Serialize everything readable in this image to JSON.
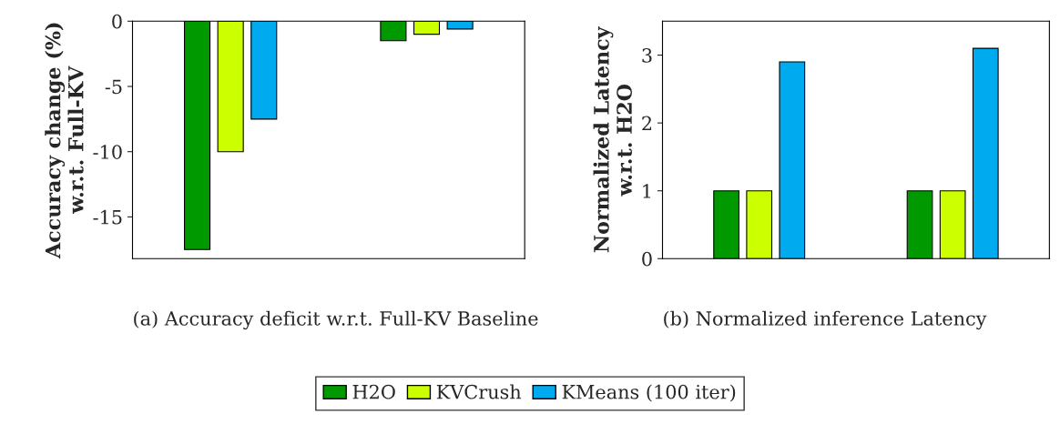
{
  "chart_data": [
    {
      "type": "bar",
      "ylabel": "Accuracy change (%)\nw.r.t. Full-KV",
      "categories": [
        null,
        null
      ],
      "series": [
        {
          "name": "H2O",
          "color": "#009900",
          "values": [
            -17.5,
            -1.5
          ]
        },
        {
          "name": "KVCrush",
          "color": "#ccff00",
          "values": [
            -10,
            -1
          ]
        },
        {
          "name": "KMeans (100 iter)",
          "color": "#00aaee",
          "values": [
            -7.5,
            -0.6
          ]
        }
      ],
      "tick_labels": "y",
      "ylim": [
        -18.2,
        0
      ],
      "yticks": [
        -15,
        -10,
        -5,
        0
      ],
      "legend": "bottom",
      "annotations": [
        "(a) Accuracy deficit w.r.t. Full-KV Baseline"
      ]
    },
    {
      "type": "bar",
      "ylabel": "Normalized Latency\nw.r.t. H2O",
      "categories": [
        null,
        null
      ],
      "series": [
        {
          "name": "H2O",
          "color": "#009900",
          "values": [
            1,
            1
          ]
        },
        {
          "name": "KVCrush",
          "color": "#ccff00",
          "values": [
            1,
            1
          ]
        },
        {
          "name": "KMeans (100 iter)",
          "color": "#00aaee",
          "values": [
            2.9,
            3.1
          ]
        }
      ],
      "tick_labels": "y",
      "ylim": [
        0,
        3.5
      ],
      "yticks": [
        0,
        1,
        2,
        3
      ],
      "annotations": [
        "(b) Normalized inference Latency"
      ]
    }
  ]
}
